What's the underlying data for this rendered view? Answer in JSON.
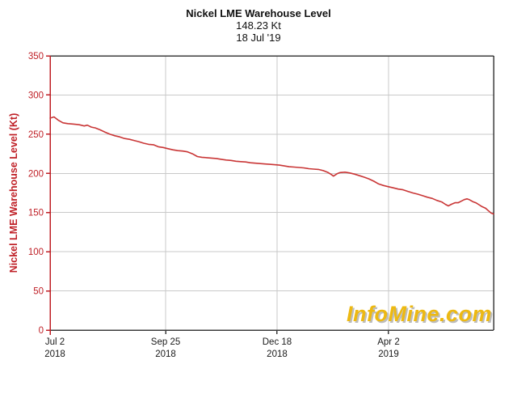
{
  "header": {
    "title": "Nickel LME Warehouse Level",
    "value": "148.23 Kt",
    "date": "18 Jul '19"
  },
  "watermark": {
    "text": "InfoMine.com"
  },
  "colors": {
    "axis_red": "#bf1f26",
    "line_red": "#c93636",
    "grid": "#c9c9c9",
    "border_dark": "#3c3c3c",
    "text_dark": "#1a1a1a",
    "watermark_gold": "#edb912"
  },
  "chart_data": {
    "type": "line",
    "title": "Nickel LME Warehouse Level",
    "subtitle_value": "148.23 Kt",
    "subtitle_date": "18 Jul '19",
    "latest_value_kt": 148.23,
    "ylabel": "Nickel LME Warehouse Level (Kt)",
    "ylim": [
      0,
      350
    ],
    "yticks": [
      0,
      50,
      100,
      150,
      200,
      250,
      300,
      350
    ],
    "grid": true,
    "legend_position": "none",
    "x_range_labels": [
      "Jul 2 2018",
      "18 Jul 2019"
    ],
    "xticks": [
      {
        "label": "Jul 2",
        "year": "2018",
        "pos": 0.0
      },
      {
        "label": "Sep 25",
        "year": "2018",
        "pos": 0.2605
      },
      {
        "label": "Dec 18",
        "year": "2018",
        "pos": 0.5118
      },
      {
        "label": "Apr 2",
        "year": "2019",
        "pos": 0.7632
      }
    ],
    "series": [
      {
        "name": "Nickel LME Warehouse Level (Kt)",
        "color": "#c93636",
        "points": [
          [
            0.0,
            270.5
          ],
          [
            0.009,
            272
          ],
          [
            0.018,
            268
          ],
          [
            0.029,
            264.5
          ],
          [
            0.04,
            263.5
          ],
          [
            0.051,
            263
          ],
          [
            0.06,
            262.5
          ],
          [
            0.066,
            262
          ],
          [
            0.077,
            260.5
          ],
          [
            0.084,
            261.5
          ],
          [
            0.093,
            259
          ],
          [
            0.102,
            258
          ],
          [
            0.113,
            255.5
          ],
          [
            0.124,
            252.5
          ],
          [
            0.135,
            250
          ],
          [
            0.146,
            248
          ],
          [
            0.157,
            246.5
          ],
          [
            0.168,
            244.5
          ],
          [
            0.179,
            243.5
          ],
          [
            0.189,
            242
          ],
          [
            0.2,
            240.5
          ],
          [
            0.211,
            238.5
          ],
          [
            0.222,
            237
          ],
          [
            0.233,
            236.5
          ],
          [
            0.244,
            234
          ],
          [
            0.255,
            233
          ],
          [
            0.266,
            231.5
          ],
          [
            0.277,
            230
          ],
          [
            0.288,
            229
          ],
          [
            0.299,
            228.5
          ],
          [
            0.31,
            227.5
          ],
          [
            0.321,
            225
          ],
          [
            0.332,
            221.5
          ],
          [
            0.342,
            220.5
          ],
          [
            0.353,
            220
          ],
          [
            0.364,
            219.5
          ],
          [
            0.375,
            219
          ],
          [
            0.386,
            218
          ],
          [
            0.397,
            217
          ],
          [
            0.408,
            216.5
          ],
          [
            0.419,
            215.5
          ],
          [
            0.43,
            215
          ],
          [
            0.441,
            214.5
          ],
          [
            0.452,
            213.5
          ],
          [
            0.463,
            213
          ],
          [
            0.474,
            212.5
          ],
          [
            0.485,
            212
          ],
          [
            0.495,
            211.5
          ],
          [
            0.506,
            211
          ],
          [
            0.517,
            210.5
          ],
          [
            0.528,
            209.5
          ],
          [
            0.539,
            208.5
          ],
          [
            0.55,
            208
          ],
          [
            0.561,
            207.5
          ],
          [
            0.572,
            207
          ],
          [
            0.583,
            206
          ],
          [
            0.594,
            205.5
          ],
          [
            0.605,
            205
          ],
          [
            0.616,
            203.5
          ],
          [
            0.627,
            201
          ],
          [
            0.634,
            198.5
          ],
          [
            0.639,
            196.5
          ],
          [
            0.647,
            199.5
          ],
          [
            0.654,
            201
          ],
          [
            0.665,
            201.5
          ],
          [
            0.676,
            200.5
          ],
          [
            0.687,
            199
          ],
          [
            0.698,
            197
          ],
          [
            0.709,
            195
          ],
          [
            0.719,
            193
          ],
          [
            0.73,
            190
          ],
          [
            0.741,
            186.5
          ],
          [
            0.752,
            184.5
          ],
          [
            0.763,
            183
          ],
          [
            0.774,
            181.5
          ],
          [
            0.785,
            180
          ],
          [
            0.796,
            179
          ],
          [
            0.807,
            177
          ],
          [
            0.818,
            175
          ],
          [
            0.829,
            173.5
          ],
          [
            0.84,
            171.5
          ],
          [
            0.851,
            169.5
          ],
          [
            0.862,
            168
          ],
          [
            0.872,
            165.5
          ],
          [
            0.883,
            163.5
          ],
          [
            0.891,
            160.5
          ],
          [
            0.898,
            158.5
          ],
          [
            0.905,
            160.5
          ],
          [
            0.913,
            162.5
          ],
          [
            0.92,
            162.5
          ],
          [
            0.927,
            164.5
          ],
          [
            0.934,
            166.5
          ],
          [
            0.94,
            167.5
          ],
          [
            0.945,
            166.5
          ],
          [
            0.953,
            164
          ],
          [
            0.96,
            162.5
          ],
          [
            0.967,
            160
          ],
          [
            0.974,
            157.5
          ],
          [
            0.982,
            155.5
          ],
          [
            0.989,
            152
          ],
          [
            0.994,
            149.5
          ],
          [
            1.0,
            148.2
          ]
        ]
      }
    ]
  }
}
